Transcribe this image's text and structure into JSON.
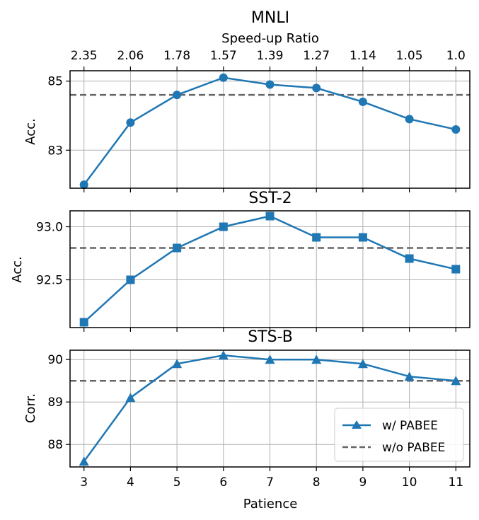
{
  "chart_data": [
    {
      "type": "line",
      "title": "MNLI",
      "ylabel": "Acc.",
      "x": [
        3,
        4,
        5,
        6,
        7,
        8,
        9,
        10,
        11
      ],
      "ylim": [
        81.9,
        85.3
      ],
      "yticks": [
        83,
        85
      ],
      "ytick_labels": [
        "83",
        "85"
      ],
      "secondary_x_label": "Speed-up Ratio",
      "secondary_x_ticks": [
        "2.35",
        "2.06",
        "1.78",
        "1.57",
        "1.39",
        "1.27",
        "1.14",
        "1.05",
        "1.0"
      ],
      "marker": "circle",
      "series": [
        {
          "values": [
            82.0,
            83.8,
            84.6,
            85.1,
            84.9,
            84.8,
            84.4,
            83.9,
            83.6
          ]
        }
      ],
      "baseline": 84.6,
      "grid": true
    },
    {
      "type": "line",
      "title": "SST-2",
      "ylabel": "Acc.",
      "x": [
        3,
        4,
        5,
        6,
        7,
        8,
        9,
        10,
        11
      ],
      "ylim": [
        92.05,
        93.15
      ],
      "yticks": [
        92.5,
        93.0
      ],
      "ytick_labels": [
        "92.5",
        "93.0"
      ],
      "marker": "square",
      "series": [
        {
          "values": [
            92.1,
            92.5,
            92.8,
            93.0,
            93.1,
            92.9,
            92.9,
            92.7,
            92.6
          ]
        }
      ],
      "baseline": 92.8,
      "grid": true
    },
    {
      "type": "line",
      "title": "STS-B",
      "ylabel": "Corr.",
      "xlabel": "Patience",
      "x": [
        3,
        4,
        5,
        6,
        7,
        8,
        9,
        10,
        11
      ],
      "ylim": [
        87.47,
        90.22
      ],
      "yticks": [
        88,
        89,
        90
      ],
      "ytick_labels": [
        "88",
        "89",
        "90"
      ],
      "marker": "triangle",
      "series": [
        {
          "name": "w/ PABEE",
          "values": [
            87.6,
            89.1,
            89.9,
            90.1,
            90.0,
            90.0,
            89.9,
            89.6,
            89.5
          ]
        }
      ],
      "baseline": 89.5,
      "baseline_name": "w/o PABEE",
      "grid": true,
      "legend_position": "lower-right"
    }
  ],
  "colors": {
    "series": "#1f77b4",
    "baseline": "#666666",
    "grid": "#b0b0b0"
  }
}
